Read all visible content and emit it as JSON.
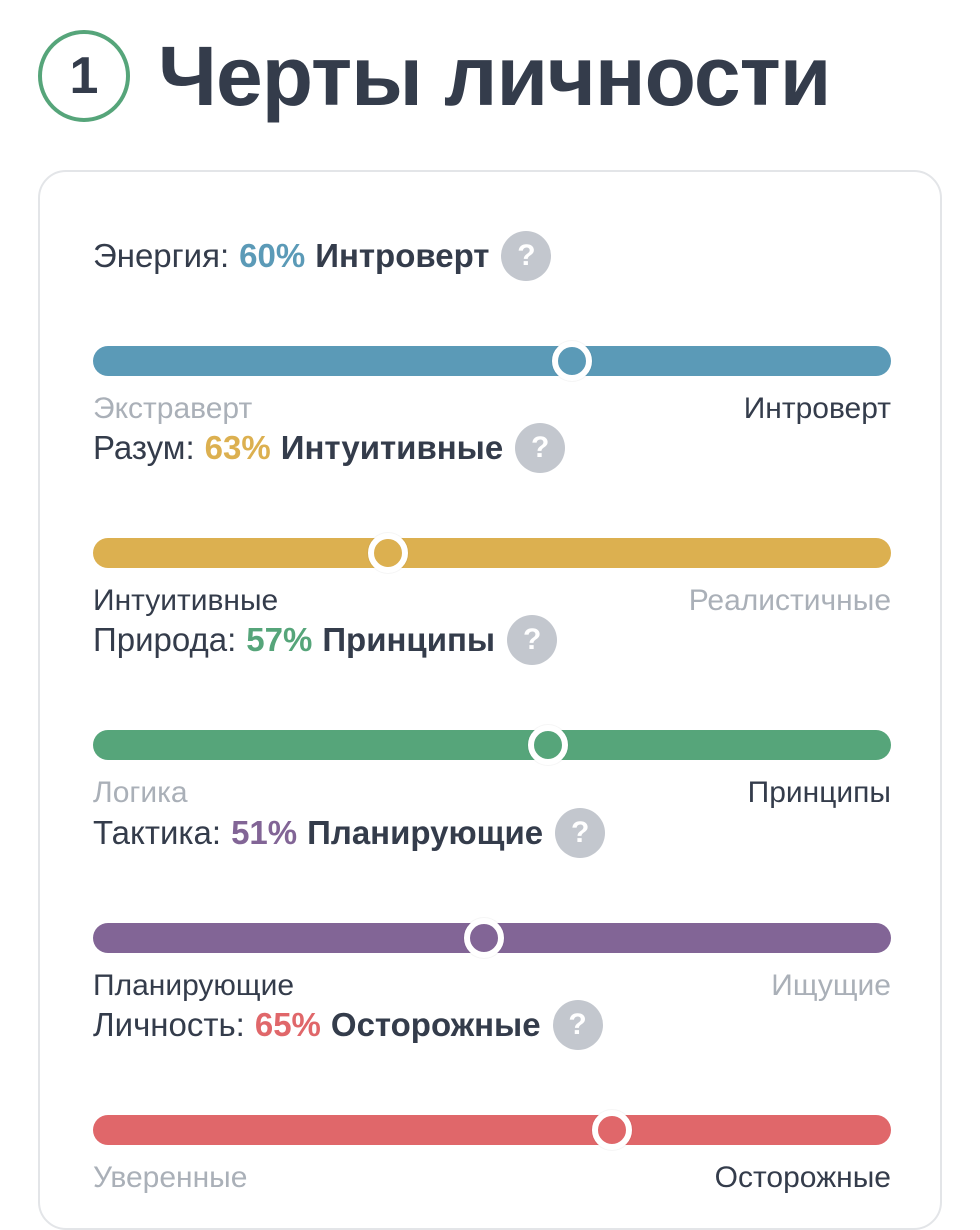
{
  "header": {
    "step_number": "1",
    "title": "Черты личности"
  },
  "help_glyph": "?",
  "traits": [
    {
      "label": "Энергия:",
      "percent": "60%",
      "result": "Интроверт",
      "color": "#5b9ab7",
      "value": 0.6,
      "left_pole": "Экстраверт",
      "right_pole": "Интроверт",
      "active_side": "right"
    },
    {
      "label": "Разум:",
      "percent": "63%",
      "result": "Интуитивные",
      "color": "#dcb050",
      "value": 0.37,
      "left_pole": "Интуитивные",
      "right_pole": "Реалистичные",
      "active_side": "left"
    },
    {
      "label": "Природа:",
      "percent": "57%",
      "result": "Принципы",
      "color": "#56a57a",
      "value": 0.57,
      "left_pole": "Логика",
      "right_pole": "Принципы",
      "active_side": "right"
    },
    {
      "label": "Тактика:",
      "percent": "51%",
      "result": "Планирующие",
      "color": "#826596",
      "value": 0.49,
      "left_pole": "Планирующие",
      "right_pole": "Ищущие",
      "active_side": "left"
    },
    {
      "label": "Личность:",
      "percent": "65%",
      "result": "Осторожные",
      "color": "#e0676a",
      "value": 0.65,
      "left_pole": "Уверенные",
      "right_pole": "Осторожные",
      "active_side": "right"
    }
  ]
}
